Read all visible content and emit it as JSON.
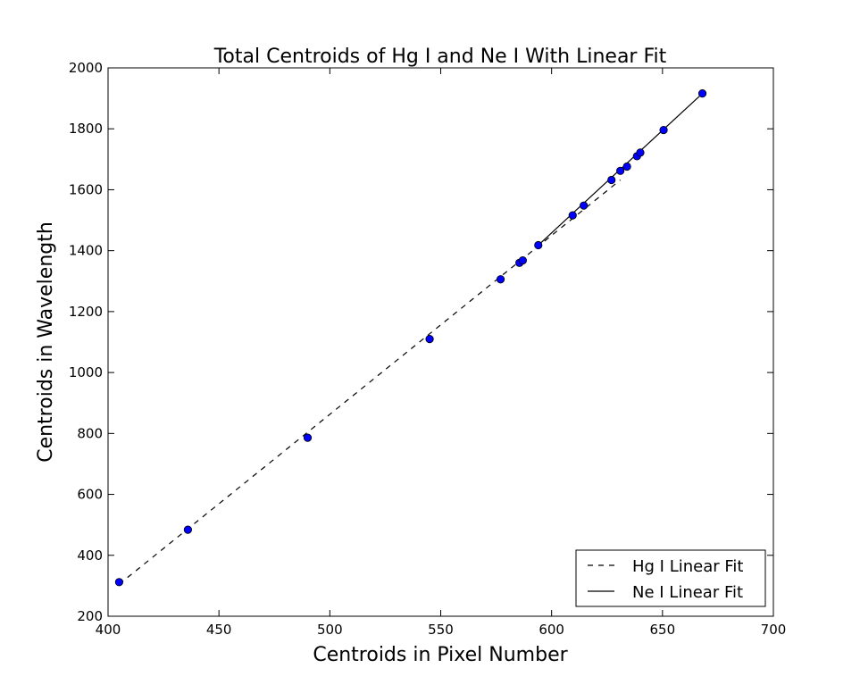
{
  "chart_data": {
    "type": "scatter",
    "title": "Total Centroids of Hg I and Ne I With Linear Fit",
    "xlabel": "Centroids in Pixel Number",
    "ylabel": "Centroids in Wavelength",
    "xlim": [
      400,
      700
    ],
    "ylim": [
      200,
      2000
    ],
    "xticks": [
      400,
      450,
      500,
      550,
      600,
      650,
      700
    ],
    "yticks": [
      200,
      400,
      600,
      800,
      1000,
      1200,
      1400,
      1600,
      1800,
      2000
    ],
    "grid": false,
    "legend_position": "bottom-right",
    "points": {
      "color": "#0000ff",
      "x": [
        405,
        436,
        490,
        545,
        577,
        585.5,
        587,
        594,
        609.5,
        614.5,
        627,
        631,
        634,
        638.5,
        640,
        650.5,
        668
      ],
      "y": [
        312,
        484,
        786,
        1110,
        1306,
        1360,
        1368,
        1418,
        1516,
        1548,
        1632,
        1662,
        1676,
        1710,
        1722,
        1796,
        1916
      ]
    },
    "series": [
      {
        "name": "Hg I Linear Fit",
        "style": "dashed",
        "color": "#000000",
        "x": [
          405,
          631
        ],
        "y": [
          305,
          1632
        ]
      },
      {
        "name": "Ne I Linear Fit",
        "style": "solid",
        "color": "#000000",
        "x": [
          594,
          668
        ],
        "y": [
          1418,
          1916
        ]
      }
    ]
  }
}
